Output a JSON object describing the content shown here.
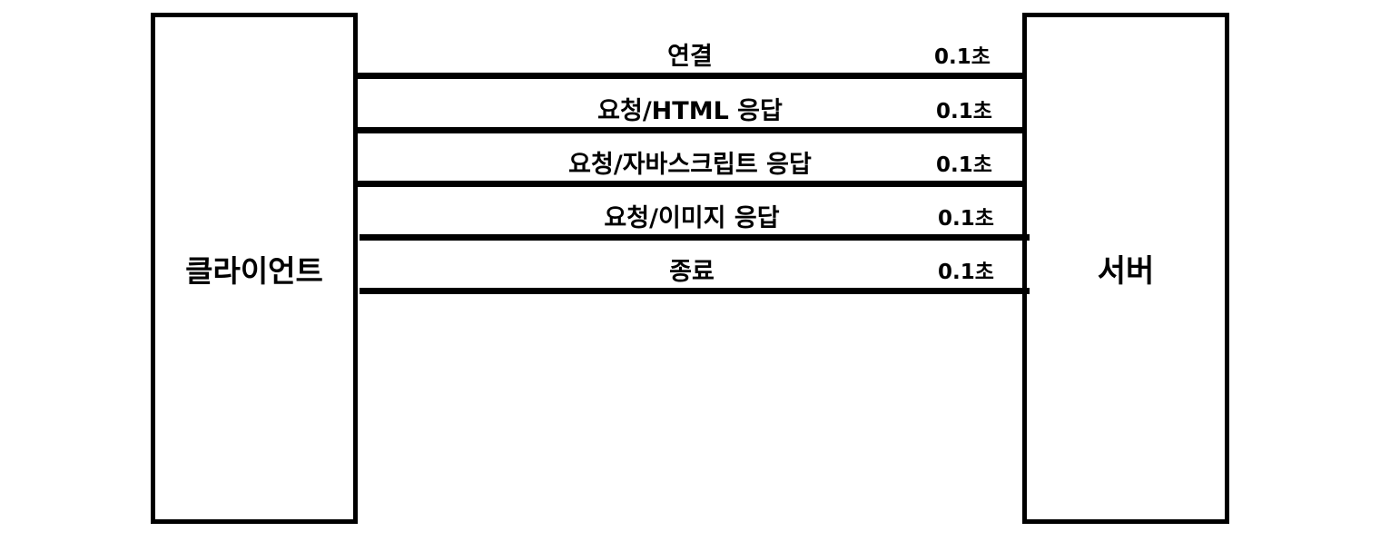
{
  "client": {
    "label": "클라이언트"
  },
  "server": {
    "label": "서버"
  },
  "messages": [
    {
      "label": "연결",
      "time": "0.1초"
    },
    {
      "label": "요청/HTML 응답",
      "time": "0.1초"
    },
    {
      "label": "요청/자바스크립트 응답",
      "time": "0.1초"
    },
    {
      "label": "요청/이미지 응답",
      "time": "0.1초"
    },
    {
      "label": "종료",
      "time": "0.1초"
    }
  ]
}
